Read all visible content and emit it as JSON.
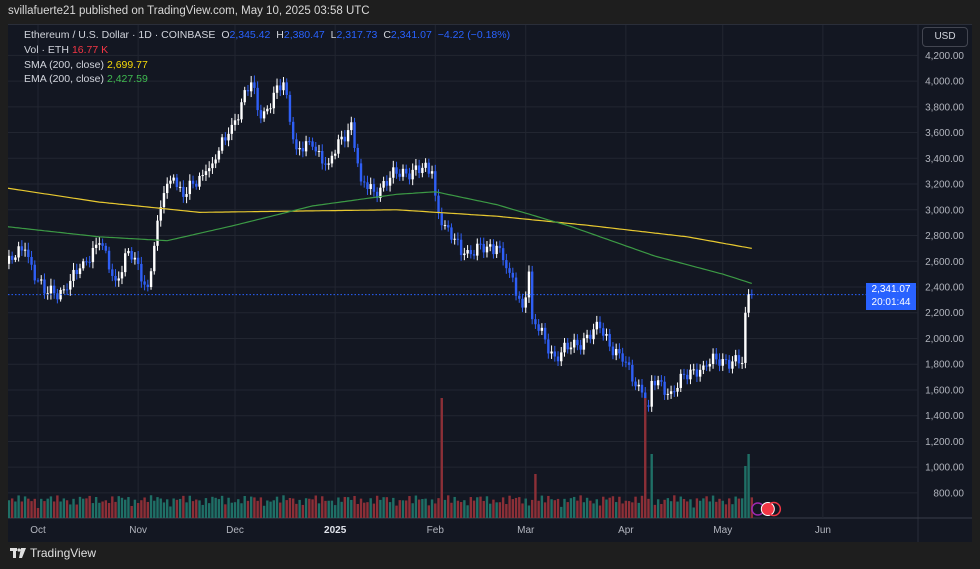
{
  "published": "svillafuerte21 published on TradingView.com, May 10, 2025 03:58 UTC",
  "legend": {
    "symbol": "Ethereum / U.S. Dollar · 1D · COINBASE",
    "o_label": "O",
    "open": "2,345.42",
    "h_label": "H",
    "high": "2,380.47",
    "l_label": "L",
    "low": "2,317.73",
    "c_label": "C",
    "close": "2,341.07",
    "change": "−4.22 (−0.18%)",
    "vol_label": "Vol · ETH",
    "vol_value": "16.77 K",
    "sma_label": "SMA (200, close)",
    "sma_value": "2,699.77",
    "ema_label": "EMA (200, close)",
    "ema_value": "2,427.59"
  },
  "currency": "USD",
  "last_price": {
    "price": "2,341.07",
    "countdown": "20:01:44"
  },
  "footer_brand": "TradingView",
  "colors": {
    "up": "#ffffff",
    "down": "#2f5ff5",
    "sma": "#e8c930",
    "ema": "#3c9a45",
    "vol_up": "#1f6f66",
    "vol_down": "#8c2f37",
    "accent": "#2962ff"
  },
  "chart_data": {
    "type": "candlestick",
    "title": "Ethereum / U.S. Dollar · 1D · COINBASE",
    "y_ticks": [
      "4,200.00",
      "4,000.00",
      "3,800.00",
      "3,600.00",
      "3,400.00",
      "3,200.00",
      "3,000.00",
      "2,800.00",
      "2,600.00",
      "2,400.00",
      "2,200.00",
      "2,000.00",
      "1,800.00",
      "1,600.00",
      "1,400.00",
      "1,200.00",
      "1,000.00",
      "800.00"
    ],
    "y_tick_values": [
      4200,
      4000,
      3800,
      3600,
      3400,
      3200,
      3000,
      2800,
      2600,
      2400,
      2200,
      2000,
      1800,
      1600,
      1400,
      1200,
      1000,
      800
    ],
    "x_ticks": [
      {
        "label": "Oct",
        "date": "2024-10-01"
      },
      {
        "label": "Nov",
        "date": "2024-11-01"
      },
      {
        "label": "Dec",
        "date": "2024-12-01"
      },
      {
        "label": "2025",
        "date": "2025-01-01",
        "bold": true
      },
      {
        "label": "Feb",
        "date": "2025-02-01"
      },
      {
        "label": "Mar",
        "date": "2025-03-01"
      },
      {
        "label": "Apr",
        "date": "2025-04-01"
      },
      {
        "label": "May",
        "date": "2025-05-01"
      },
      {
        "label": "Jun",
        "date": "2025-06-01"
      }
    ],
    "grid": true,
    "close_keypoints": [
      [
        "2024-09-21",
        2580
      ],
      [
        "2024-09-27",
        2690
      ],
      [
        "2024-10-01",
        2450
      ],
      [
        "2024-10-03",
        2350
      ],
      [
        "2024-10-10",
        2380
      ],
      [
        "2024-10-15",
        2600
      ],
      [
        "2024-10-20",
        2740
      ],
      [
        "2024-10-25",
        2450
      ],
      [
        "2024-10-29",
        2680
      ],
      [
        "2024-11-04",
        2400
      ],
      [
        "2024-11-06",
        2720
      ],
      [
        "2024-11-09",
        3130
      ],
      [
        "2024-11-12",
        3250
      ],
      [
        "2024-11-15",
        3100
      ],
      [
        "2024-11-22",
        3300
      ],
      [
        "2024-11-24",
        3360
      ],
      [
        "2024-11-29",
        3590
      ],
      [
        "2024-12-06",
        3990
      ],
      [
        "2024-12-09",
        3710
      ],
      [
        "2024-12-16",
        3990
      ],
      [
        "2024-12-20",
        3470
      ],
      [
        "2024-12-25",
        3490
      ],
      [
        "2024-12-30",
        3360
      ],
      [
        "2025-01-06",
        3680
      ],
      [
        "2025-01-09",
        3220
      ],
      [
        "2025-01-13",
        3140
      ],
      [
        "2025-01-20",
        3280
      ],
      [
        "2025-01-25",
        3310
      ],
      [
        "2025-01-31",
        3300
      ],
      [
        "2025-02-01",
        3110
      ],
      [
        "2025-02-03",
        2880
      ],
      [
        "2025-02-10",
        2660
      ],
      [
        "2025-02-20",
        2720
      ],
      [
        "2025-02-24",
        2510
      ],
      [
        "2025-02-28",
        2240
      ],
      [
        "2025-03-02",
        2520
      ],
      [
        "2025-03-03",
        2150
      ],
      [
        "2025-03-10",
        1860
      ],
      [
        "2025-03-15",
        1930
      ],
      [
        "2025-03-24",
        2080
      ],
      [
        "2025-03-31",
        1820
      ],
      [
        "2025-04-06",
        1580
      ],
      [
        "2025-04-08",
        1470
      ],
      [
        "2025-04-09",
        1670
      ],
      [
        "2025-04-15",
        1590
      ],
      [
        "2025-04-22",
        1760
      ],
      [
        "2025-04-25",
        1790
      ],
      [
        "2025-05-01",
        1840
      ],
      [
        "2025-05-07",
        1810
      ],
      [
        "2025-05-08",
        2200
      ],
      [
        "2025-05-09",
        2345
      ],
      [
        "2025-05-10",
        2341.07
      ]
    ],
    "volume_spikes": [
      [
        "2025-02-03",
        3.0
      ],
      [
        "2025-04-07",
        3.0
      ],
      [
        "2025-05-09",
        1.6
      ],
      [
        "2025-05-08",
        1.3
      ],
      [
        "2025-03-04",
        1.1
      ],
      [
        "2025-04-09",
        1.6
      ]
    ],
    "series": [
      {
        "name": "SMA (200, close)",
        "keypoints": [
          [
            "2024-09-21",
            3170
          ],
          [
            "2024-10-20",
            3060
          ],
          [
            "2024-11-20",
            2980
          ],
          [
            "2024-12-20",
            2990
          ],
          [
            "2025-01-20",
            3000
          ],
          [
            "2025-02-20",
            2950
          ],
          [
            "2025-03-20",
            2880
          ],
          [
            "2025-04-20",
            2790
          ],
          [
            "2025-05-10",
            2700
          ]
        ]
      },
      {
        "name": "EMA (200, close)",
        "keypoints": [
          [
            "2024-09-21",
            2870
          ],
          [
            "2024-10-20",
            2790
          ],
          [
            "2024-11-10",
            2760
          ],
          [
            "2024-12-01",
            2880
          ],
          [
            "2024-12-25",
            3030
          ],
          [
            "2025-01-20",
            3120
          ],
          [
            "2025-02-01",
            3140
          ],
          [
            "2025-02-20",
            3040
          ],
          [
            "2025-03-15",
            2870
          ],
          [
            "2025-04-10",
            2640
          ],
          [
            "2025-05-01",
            2500
          ],
          [
            "2025-05-10",
            2428
          ]
        ]
      }
    ]
  }
}
